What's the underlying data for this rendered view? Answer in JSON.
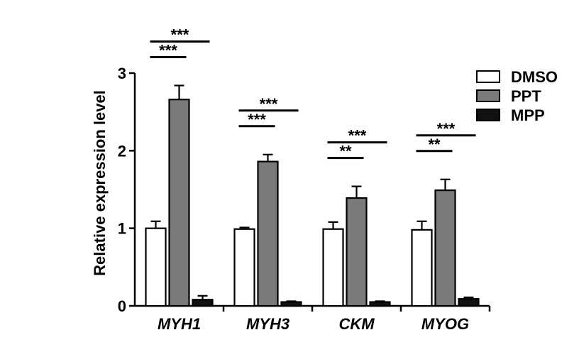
{
  "chart_data": {
    "type": "bar",
    "ylabel": "Relative expression level",
    "xlabel": "",
    "ylim": [
      0,
      3
    ],
    "yticks": [
      0,
      1,
      2,
      3
    ],
    "categories": [
      "MYH1",
      "MYH3",
      "CKM",
      "MYOG"
    ],
    "legend_position": "top-right",
    "series": [
      {
        "name": "DMSO",
        "color": "#ffffff",
        "values": [
          1.0,
          0.99,
          0.99,
          0.98
        ],
        "errors": [
          0.09,
          0.02,
          0.09,
          0.11
        ]
      },
      {
        "name": "PPT",
        "color": "#7a7a7a",
        "values": [
          2.66,
          1.86,
          1.39,
          1.49
        ],
        "errors": [
          0.18,
          0.09,
          0.15,
          0.14
        ]
      },
      {
        "name": "MPP",
        "color": "#111111",
        "values": [
          0.08,
          0.05,
          0.05,
          0.09
        ],
        "errors": [
          0.05,
          0.01,
          0.01,
          0.02
        ]
      }
    ],
    "significance": [
      {
        "category": "MYH1",
        "from": "DMSO",
        "to": "PPT",
        "label": "***"
      },
      {
        "category": "MYH1",
        "from": "DMSO",
        "to": "MPP",
        "label": "***"
      },
      {
        "category": "MYH3",
        "from": "DMSO",
        "to": "PPT",
        "label": "***"
      },
      {
        "category": "MYH3",
        "from": "DMSO",
        "to": "MPP",
        "label": "***"
      },
      {
        "category": "CKM",
        "from": "DMSO",
        "to": "PPT",
        "label": "**"
      },
      {
        "category": "CKM",
        "from": "DMSO",
        "to": "MPP",
        "label": "***"
      },
      {
        "category": "MYOG",
        "from": "DMSO",
        "to": "PPT",
        "label": "**"
      },
      {
        "category": "MYOG",
        "from": "DMSO",
        "to": "MPP",
        "label": "***"
      }
    ]
  }
}
